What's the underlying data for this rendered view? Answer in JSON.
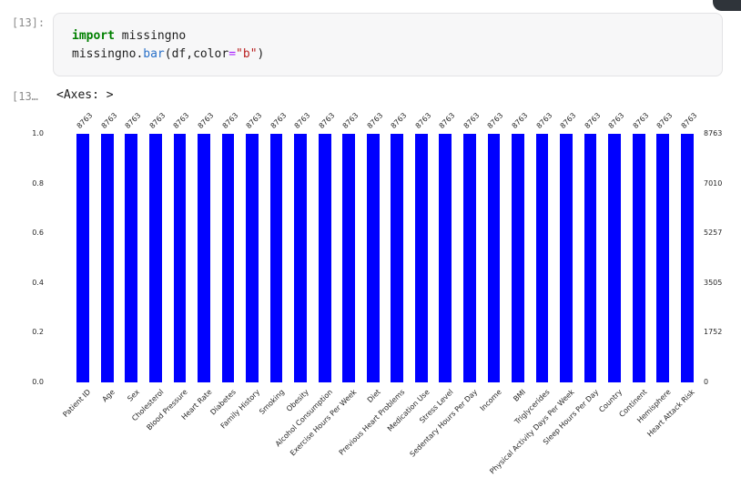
{
  "cell": {
    "input_prompt": "[13]:",
    "output_prompt": "[13…",
    "output_repr": "<Axes: >",
    "code_lines": [
      [
        {
          "text": "import",
          "cls": "kw"
        },
        {
          "text": " missingno",
          "cls": "plain"
        }
      ],
      [
        {
          "text": "missingno.",
          "cls": "plain"
        },
        {
          "text": "bar",
          "cls": "fn"
        },
        {
          "text": "(df,color",
          "cls": "plain"
        },
        {
          "text": "=",
          "cls": "op"
        },
        {
          "text": "\"b\"",
          "cls": "str"
        },
        {
          "text": ")",
          "cls": "plain"
        }
      ]
    ]
  },
  "syntax_colors": {
    "keyword": "#008000",
    "function": "#2970c8",
    "operator": "#aa22ff",
    "string": "#ba2121",
    "plain": "#1f1f1f",
    "prompt": "#8c8c8c"
  },
  "chart_data": {
    "type": "bar",
    "title": "",
    "xlabel": "",
    "ylabel": "",
    "grid": false,
    "bar_color": "#0000ff",
    "categories": [
      "Patient ID",
      "Age",
      "Sex",
      "Cholesterol",
      "Blood Pressure",
      "Heart Rate",
      "Diabetes",
      "Family History",
      "Smoking",
      "Obesity",
      "Alcohol Consumption",
      "Exercise Hours Per Week",
      "Diet",
      "Previous Heart Problems",
      "Medication Use",
      "Stress Level",
      "Sedentary Hours Per Day",
      "Income",
      "BMI",
      "Triglycerides",
      "Physical Activity Days Per Week",
      "Sleep Hours Per Day",
      "Country",
      "Continent",
      "Hemisphere",
      "Heart Attack Risk"
    ],
    "values": [
      8763,
      8763,
      8763,
      8763,
      8763,
      8763,
      8763,
      8763,
      8763,
      8763,
      8763,
      8763,
      8763,
      8763,
      8763,
      8763,
      8763,
      8763,
      8763,
      8763,
      8763,
      8763,
      8763,
      8763,
      8763,
      8763
    ],
    "ylim_left": [
      0.0,
      1.0
    ],
    "y_max_count": 8763,
    "yticks_left": [
      "0.0",
      "0.2",
      "0.4",
      "0.6",
      "0.8",
      "1.0"
    ],
    "yticks_right": [
      "0",
      "1752",
      "3505",
      "5257",
      "7010",
      "8763"
    ]
  }
}
